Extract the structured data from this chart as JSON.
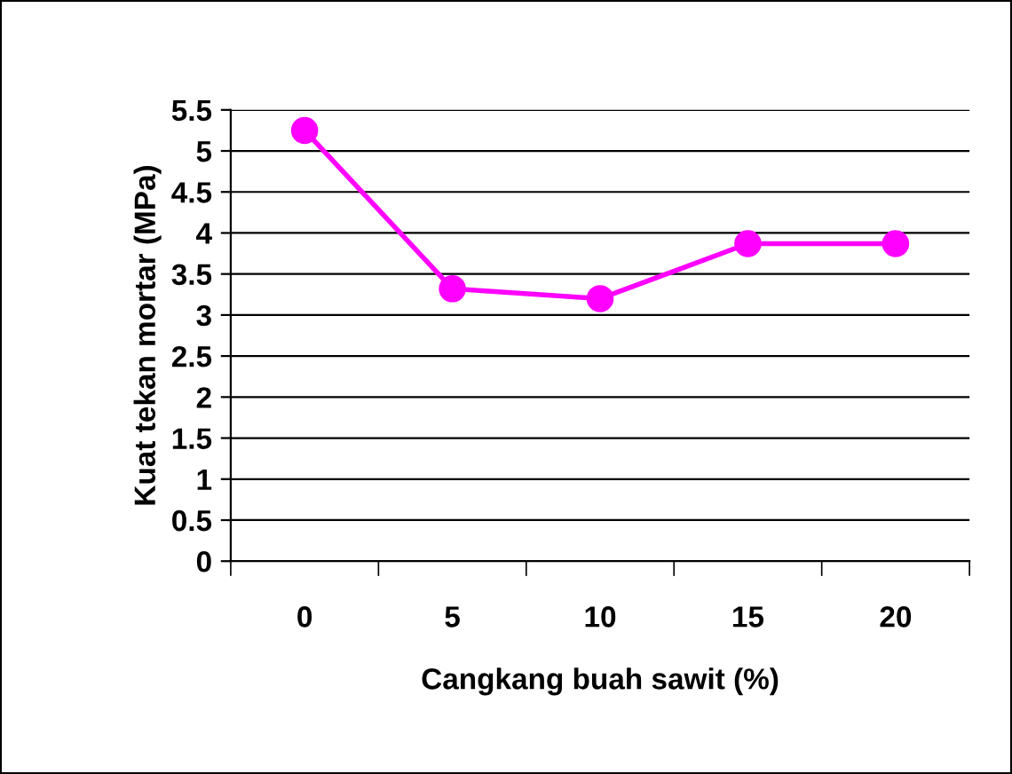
{
  "chart_data": {
    "type": "line",
    "xlabel": "Cangkang buah sawit (%)",
    "ylabel": "Kuat tekan mortar (MPa)",
    "categories": [
      "0",
      "5",
      "10",
      "15",
      "20"
    ],
    "series": [
      {
        "color": "#ff00ff",
        "values": [
          5.25,
          3.32,
          3.2,
          3.87,
          3.87
        ]
      }
    ],
    "ylim": [
      0,
      5.5
    ],
    "yticks": [
      0,
      0.5,
      1,
      1.5,
      2,
      2.5,
      3,
      3.5,
      4,
      4.5,
      5,
      5.5
    ],
    "grid": "y",
    "marker": "circle",
    "line_style": "solid"
  }
}
